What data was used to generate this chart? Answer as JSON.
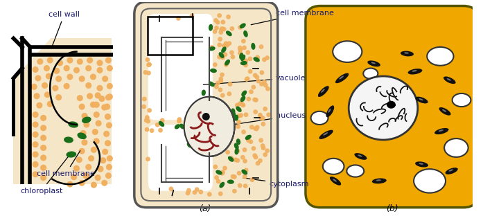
{
  "bg_color": "#ffffff",
  "fig_width": 6.97,
  "fig_height": 3.12,
  "dpi": 100,
  "cytoplasm_bg": "#f5e6c8",
  "dot_color_orange": "#f0b060",
  "dot_color_green": "#1a6e1a",
  "chromatin_color": "#8b1a1a",
  "animal_cell_fill": "#f0a800",
  "animal_cell_edge": "#c87800",
  "animal_nucleus_fill": "#f5f5f5",
  "labels": {
    "cell_wall": "cell wall",
    "cell_membrane_left": "cell membrane",
    "chloroplast": "chloroplast",
    "cell_membrane_center": "cell membrane",
    "vacuole": "vacuole",
    "nucleus_center": "nucleus",
    "cytoplasm": "cytoplasm",
    "label_a": "(a)",
    "label_b": "(b)"
  },
  "font_size": 8,
  "font_color": "#1a1a6e"
}
